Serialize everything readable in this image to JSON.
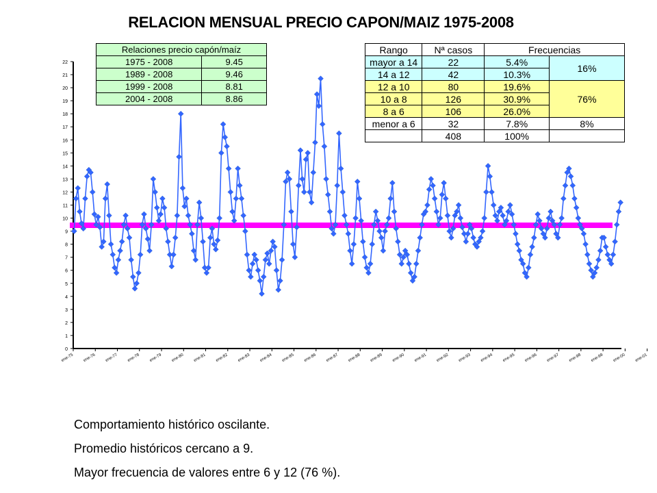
{
  "title": "RELACION MENSUAL PRECIO CAPON/MAIZ 1975-2008",
  "colors": {
    "series": "#3366ff",
    "series_marker": "#3366cc",
    "average_line": "#ff00ff",
    "green_table": "#ccffcc",
    "blue_cell": "#ccffff",
    "yellow_cell": "#ffff99"
  },
  "relations_table": {
    "header": "Relaciones precio capón/maíz",
    "rows": [
      {
        "period": "1975 - 2008",
        "value": "9.45"
      },
      {
        "period": "1989 - 2008",
        "value": "9.46"
      },
      {
        "period": "1999 - 2008",
        "value": "8.81"
      },
      {
        "period": "2004 - 2008",
        "value": "8.86"
      }
    ]
  },
  "frequency_table": {
    "headers": [
      "Rango",
      "Nª casos",
      "Frecuencias"
    ],
    "rows": [
      {
        "range": "mayor a 14",
        "cases": "22",
        "freq": "5.4%",
        "color": "blue"
      },
      {
        "range": "14 a 12",
        "cases": "42",
        "freq": "10.3%",
        "color": "blue"
      },
      {
        "range": "12 a 10",
        "cases": "80",
        "freq": "19.6%",
        "color": "yellow"
      },
      {
        "range": "10 a 8",
        "cases": "126",
        "freq": "30.9%",
        "color": "yellow"
      },
      {
        "range": "8 a 6",
        "cases": "106",
        "freq": "26.0%",
        "color": "yellow"
      },
      {
        "range": "menor a 6",
        "cases": "32",
        "freq": "7.8%",
        "color": "white"
      }
    ],
    "group_totals": [
      "16%",
      "76%",
      "8%"
    ],
    "total_cases": "408",
    "total_freq": "100%"
  },
  "notes": [
    "Comportamiento histórico oscilante.",
    "Promedio históricos cercano a 9.",
    "Mayor frecuencia de valores entre 6 y 12 (76 %)."
  ],
  "chart_data": {
    "type": "line",
    "ylim": [
      0,
      22
    ],
    "y_ticks": [
      "0",
      "1",
      "2",
      "3",
      "4",
      "5",
      "6",
      "7",
      "8",
      "9",
      "10",
      "11",
      "12",
      "13",
      "14",
      "15",
      "16",
      "17",
      "18",
      "19",
      "20",
      "21",
      "22"
    ],
    "x_tick_labels": [
      "ene-75",
      "ene-76",
      "ene-77",
      "ene-78",
      "ene-79",
      "ene-80",
      "ene-81",
      "ene-82",
      "ene-83",
      "ene-84",
      "ene-85",
      "ene-86",
      "ene-87",
      "ene-88",
      "ene-89",
      "ene-90",
      "ene-91",
      "ene-92",
      "ene-93",
      "ene-94",
      "ene-95",
      "ene-96",
      "ene-97",
      "ene-98",
      "ene-99",
      "ene-00",
      "ene-01",
      "ene-02",
      "ene-03",
      "ene-04",
      "ene-05",
      "ene-06",
      "ene-07",
      "ene-08"
    ],
    "average_value": 9.45,
    "series_values": [
      9,
      11.5,
      12.3,
      10.5,
      9.6,
      9.2,
      11.5,
      13.2,
      13.7,
      13.5,
      12,
      10.3,
      9.5,
      10.1,
      9.3,
      7.8,
      8.2,
      11.5,
      12.6,
      10.2,
      8,
      7.2,
      6.2,
      5.8,
      6.8,
      7.5,
      8.2,
      9.5,
      10.2,
      9.2,
      8.5,
      6.8,
      5.5,
      4.6,
      5,
      5.8,
      7.2,
      9.5,
      10.3,
      9.2,
      8.4,
      7.5,
      9.5,
      13,
      12,
      10.8,
      9.8,
      10.3,
      11.5,
      10.8,
      9.2,
      8.2,
      7.2,
      6.3,
      7.2,
      8.5,
      10.2,
      14.7,
      18,
      12.3,
      10.9,
      11.5,
      10.2,
      9.5,
      8.8,
      7.5,
      6.8,
      9.5,
      11.2,
      10,
      8.2,
      6.2,
      5.8,
      6.2,
      8.5,
      9.2,
      8,
      7.6,
      8.3,
      10,
      15,
      17.2,
      16.2,
      15.5,
      13.8,
      12,
      10.5,
      9.8,
      11.5,
      13.8,
      12.5,
      11.5,
      10.2,
      9,
      7.2,
      6,
      5.5,
      6.5,
      7.2,
      6.8,
      6,
      5.2,
      4.2,
      5.5,
      6.8,
      7.3,
      6.5,
      7.5,
      8.2,
      7.8,
      6,
      4.5,
      5.2,
      6.8,
      9.5,
      12.8,
      13.5,
      13,
      10.5,
      8,
      7,
      9.3,
      12.5,
      15.2,
      13,
      12,
      14.5,
      15,
      12,
      11.2,
      13.5,
      15.8,
      19.5,
      18.6,
      20.7,
      17.2,
      15.5,
      13,
      11.8,
      10.5,
      9.2,
      8.8,
      9.5,
      12.5,
      16.5,
      13.8,
      12,
      10.2,
      9.5,
      8.8,
      7.5,
      6.5,
      8,
      10,
      12.8,
      11.5,
      9.8,
      8.2,
      7,
      6.2,
      5.8,
      6.5,
      8,
      9.5,
      10.5,
      9.8,
      9,
      8.5,
      7.5,
      9,
      9.5,
      10,
      11.5,
      12.7,
      10.5,
      9.2,
      8.2,
      7.2,
      6.5,
      7,
      7.5,
      7.2,
      6.5,
      5.8,
      5.2,
      5.5,
      6.5,
      7.5,
      8.5,
      9.5,
      10.3,
      10.5,
      11,
      12.2,
      13,
      12.5,
      11.5,
      10.5,
      9.5,
      10,
      11.8,
      12.7,
      11.5,
      10.2,
      9,
      8.5,
      9.2,
      10.2,
      10.5,
      11,
      10,
      9.3,
      8.8,
      8.2,
      8.8,
      9.5,
      9.2,
      8.5,
      8,
      7.8,
      8.2,
      8.5,
      9,
      10,
      12,
      14,
      13.2,
      12,
      11,
      10.2,
      9.8,
      10.5,
      10.8,
      10.2,
      9.5,
      9.8,
      10.5,
      11,
      10.3,
      9.5,
      8.8,
      8,
      7.5,
      6.8,
      6.5,
      5.8,
      5.5,
      6.2,
      7.2,
      7.8,
      8.5,
      9.5,
      10.3,
      9.8,
      9.2,
      8.8,
      8.5,
      9.2,
      10,
      10.5,
      9.8,
      9.5,
      8.8,
      8.5,
      9.5,
      10,
      11.5,
      12.5,
      13.5,
      13.8,
      13.2,
      12.5,
      11.5,
      10.8,
      10,
      9.5,
      9.2,
      8.8,
      8,
      7.2,
      6.5,
      6,
      5.5,
      5.8,
      6.2,
      6.8,
      7.5,
      8.5,
      8.5,
      7.8,
      7.2,
      6.8,
      6.5,
      7.2,
      8.2,
      9.5,
      10.5,
      11.2
    ]
  }
}
